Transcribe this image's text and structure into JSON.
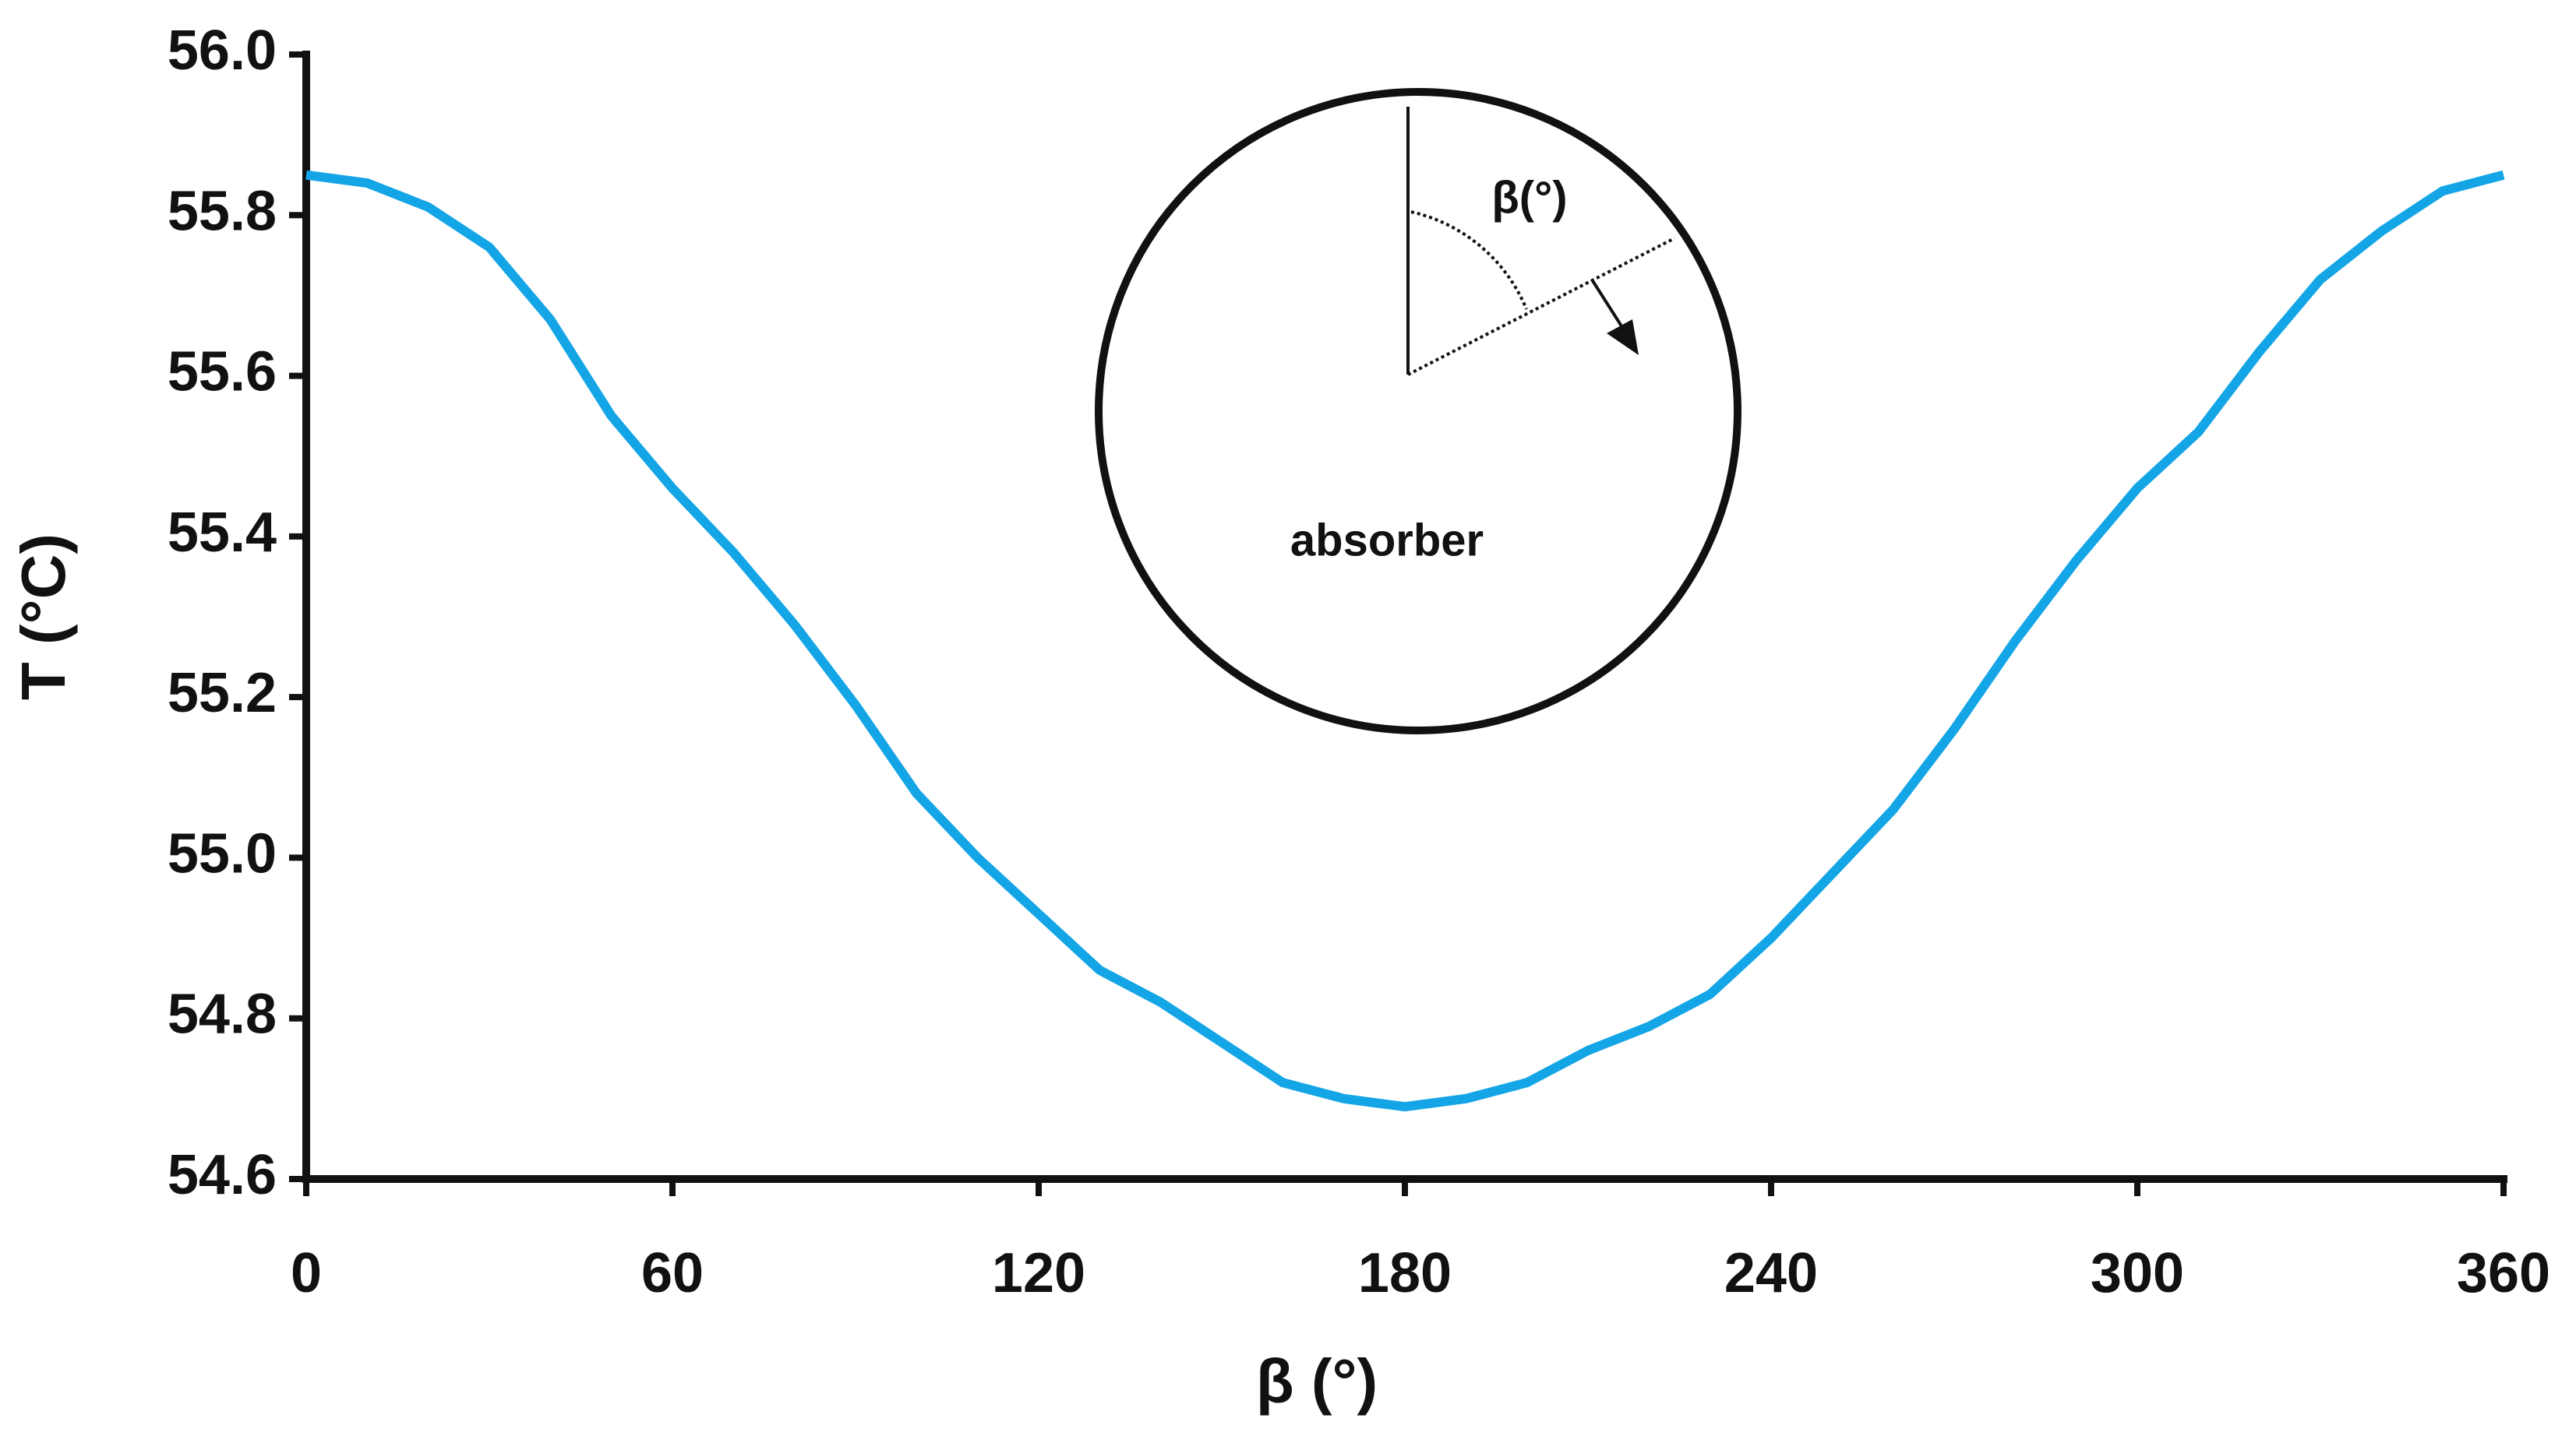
{
  "chart_data": {
    "type": "line",
    "xlabel": "β (°)",
    "ylabel": "T (°C)",
    "annotations": [
      "β(°)",
      "absorber"
    ],
    "x": [
      0,
      10,
      20,
      30,
      40,
      50,
      60,
      70,
      80,
      90,
      100,
      110,
      120,
      130,
      140,
      150,
      160,
      170,
      180,
      190,
      200,
      210,
      220,
      230,
      240,
      250,
      260,
      270,
      280,
      290,
      300,
      310,
      320,
      330,
      340,
      350,
      360
    ],
    "series": [
      {
        "name": "T",
        "color": "#13a5e6",
        "values": [
          55.85,
          55.84,
          55.81,
          55.76,
          55.67,
          55.55,
          55.46,
          55.38,
          55.29,
          55.19,
          55.08,
          55.0,
          54.93,
          54.86,
          54.82,
          54.77,
          54.72,
          54.7,
          54.69,
          54.7,
          54.72,
          54.76,
          54.79,
          54.83,
          54.9,
          54.98,
          55.06,
          55.16,
          55.27,
          55.37,
          55.46,
          55.53,
          55.63,
          55.72,
          55.78,
          55.83,
          55.85
        ]
      }
    ],
    "xlim": [
      0,
      360
    ],
    "xticks": [
      0,
      60,
      120,
      180,
      240,
      300,
      360
    ],
    "ylim": [
      54.6,
      56.0
    ],
    "yticks": [
      54.6,
      54.8,
      {
        "value": 55.0,
        "label": "55.0"
      },
      55.2,
      55.4,
      55.6,
      55.8,
      {
        "value": 56.0,
        "label": "56.0"
      }
    ]
  }
}
